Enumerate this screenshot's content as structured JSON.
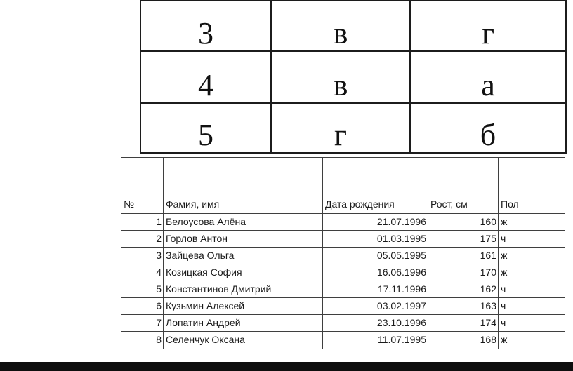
{
  "colors": {
    "background": "#ffffff",
    "answer_table_border": "#1c1c1c",
    "people_table_border": "#3f3f3f",
    "text": "#000000",
    "bottom_bar": "#0e0e0e"
  },
  "answer_table": {
    "rows": [
      [
        "3",
        "в",
        "г"
      ],
      [
        "4",
        "в",
        "а"
      ],
      [
        "5",
        "г",
        "б"
      ]
    ]
  },
  "people_table": {
    "headers": {
      "num": "№",
      "name": "Фамия, имя",
      "dob": "Дата рождения",
      "height": "Рост, см",
      "sex": "Пол"
    },
    "rows": [
      {
        "num": "1",
        "name": "Белоусова Алёна",
        "dob": "21.07.1996",
        "height": "160",
        "sex": "ж"
      },
      {
        "num": "2",
        "name": "Горлов Антон",
        "dob": "01.03.1995",
        "height": "175",
        "sex": "ч"
      },
      {
        "num": "3",
        "name": "Зайцева Ольга",
        "dob": "05.05.1995",
        "height": "161",
        "sex": "ж"
      },
      {
        "num": "4",
        "name": "Козицкая София",
        "dob": "16.06.1996",
        "height": "170",
        "sex": "ж"
      },
      {
        "num": "5",
        "name": "Константинов Дмитрий",
        "dob": "17.11.1996",
        "height": "162",
        "sex": "ч"
      },
      {
        "num": "6",
        "name": "Кузьмин Алексей",
        "dob": "03.02.1997",
        "height": "163",
        "sex": "ч"
      },
      {
        "num": "7",
        "name": "Лопатин Андрей",
        "dob": "23.10.1996",
        "height": "174",
        "sex": "ч"
      },
      {
        "num": "8",
        "name": "Селенчук Оксана",
        "dob": "11.07.1995",
        "height": "168",
        "sex": "ж"
      }
    ]
  }
}
